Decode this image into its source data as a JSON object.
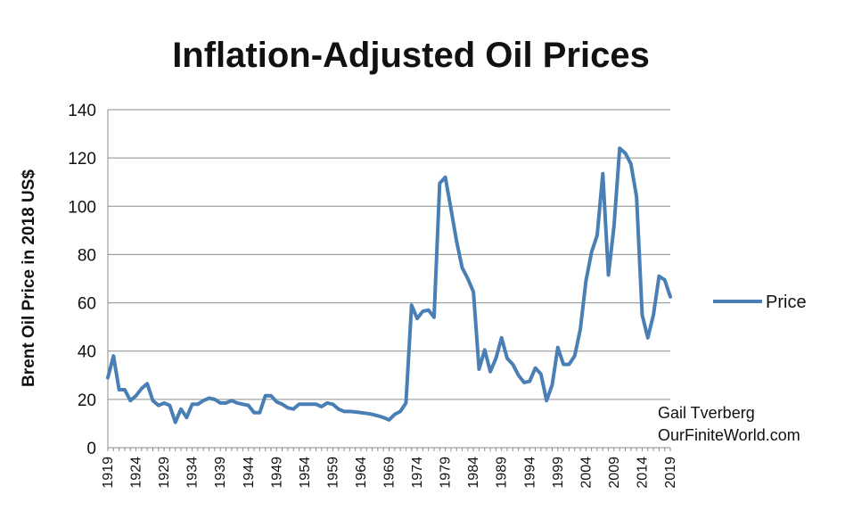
{
  "chart_data": {
    "type": "line",
    "title": "Inflation-Adjusted Oil Prices",
    "xlabel": "",
    "ylabel": "Brent Oil Price in 2018 US$",
    "ylim": [
      0,
      140
    ],
    "yticks": [
      0,
      20,
      40,
      60,
      80,
      100,
      120,
      140
    ],
    "xlim": [
      1919,
      2019
    ],
    "xticks": [
      1919,
      1924,
      1929,
      1934,
      1939,
      1944,
      1949,
      1954,
      1959,
      1964,
      1969,
      1974,
      1979,
      1984,
      1989,
      1994,
      1999,
      2004,
      2009,
      2014,
      2019
    ],
    "grid": true,
    "legend_position": "right",
    "line_color": "#4a7fb5",
    "series": [
      {
        "name": "Price",
        "x": [
          1919,
          1920,
          1921,
          1922,
          1923,
          1924,
          1925,
          1926,
          1927,
          1928,
          1929,
          1930,
          1931,
          1932,
          1933,
          1934,
          1935,
          1936,
          1937,
          1938,
          1939,
          1940,
          1941,
          1942,
          1943,
          1944,
          1945,
          1946,
          1947,
          1948,
          1949,
          1950,
          1951,
          1952,
          1953,
          1954,
          1955,
          1956,
          1957,
          1958,
          1959,
          1960,
          1961,
          1962,
          1963,
          1964,
          1965,
          1966,
          1967,
          1968,
          1969,
          1970,
          1971,
          1972,
          1973,
          1974,
          1975,
          1976,
          1977,
          1978,
          1979,
          1980,
          1981,
          1982,
          1983,
          1984,
          1985,
          1986,
          1987,
          1988,
          1989,
          1990,
          1991,
          1992,
          1993,
          1994,
          1995,
          1996,
          1997,
          1998,
          1999,
          2000,
          2001,
          2002,
          2003,
          2004,
          2005,
          2006,
          2007,
          2008,
          2009,
          2010,
          2011,
          2012,
          2013,
          2014,
          2015,
          2016,
          2017,
          2018,
          2019
        ],
        "values": [
          29,
          38,
          24,
          24,
          19.5,
          21.5,
          24.5,
          26.5,
          19.5,
          17.5,
          18.5,
          17.5,
          10.5,
          16,
          12.5,
          18,
          18,
          19.5,
          20.5,
          20,
          18.5,
          18.5,
          19.5,
          18.5,
          18,
          17.5,
          14.5,
          14.5,
          21.5,
          21.5,
          19,
          18,
          16.5,
          16,
          18,
          18,
          18,
          18,
          17,
          18.5,
          18,
          16,
          15,
          15,
          14.8,
          14.5,
          14.2,
          13.8,
          13.2,
          12.5,
          11.5,
          13.8,
          15,
          18.5,
          59,
          53.5,
          56.5,
          57,
          54,
          109.5,
          112,
          99,
          85.5,
          74.5,
          70,
          64.5,
          32.5,
          40.5,
          31.5,
          37,
          45.5,
          37,
          34.5,
          30,
          27,
          27.5,
          33,
          30.5,
          19.5,
          26,
          41.5,
          34.5,
          34.5,
          38,
          49,
          69,
          81,
          88,
          113.5,
          71.5,
          92,
          124,
          122,
          117.5,
          104,
          55,
          45.5,
          55,
          71,
          69.5,
          62.5
        ]
      }
    ],
    "annotations": [
      "Gail Tverberg",
      "OurFiniteWorld.com"
    ]
  }
}
